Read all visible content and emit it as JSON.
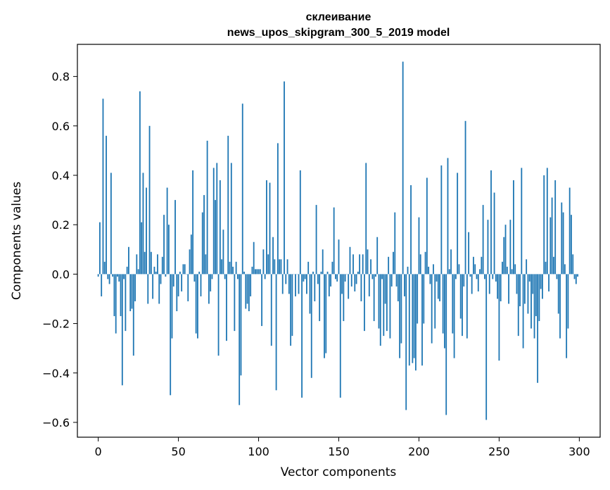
{
  "chart_data": {
    "type": "bar",
    "title": "склеивание",
    "subtitle": "news_upos_skipgram_300_5_2019 model",
    "xlabel": "Vector components",
    "ylabel": "Components values",
    "xlim": [
      -13,
      313
    ],
    "ylim": [
      -0.66,
      0.93
    ],
    "x_ticks": [
      0,
      50,
      100,
      150,
      200,
      250,
      300
    ],
    "y_ticks": [
      -0.6,
      -0.4,
      -0.2,
      0.0,
      0.2,
      0.4,
      0.6,
      0.8
    ],
    "y_tick_labels": [
      "−0.6",
      "−0.4",
      "−0.2",
      "0.0",
      "0.2",
      "0.4",
      "0.6",
      "0.8"
    ],
    "grid": false,
    "bar_color": "#1f77b4",
    "x": "0..299",
    "values": [
      -0.01,
      0.21,
      -0.09,
      0.71,
      0.05,
      0.56,
      -0.02,
      -0.04,
      0.41,
      -0.01,
      -0.17,
      -0.24,
      -0.01,
      -0.03,
      -0.17,
      -0.45,
      -0.02,
      -0.23,
      0.03,
      0.11,
      -0.15,
      -0.14,
      -0.33,
      -0.11,
      0.08,
      0.02,
      0.74,
      0.21,
      0.41,
      0.09,
      0.35,
      -0.12,
      0.6,
      0.09,
      -0.1,
      0.03,
      0.01,
      0.08,
      -0.12,
      -0.04,
      0.07,
      0.24,
      -0.01,
      0.35,
      0.2,
      -0.49,
      -0.26,
      -0.05,
      0.3,
      -0.15,
      -0.09,
      0.01,
      -0.07,
      0.04,
      0.04,
      0.0,
      -0.11,
      0.1,
      0.16,
      0.42,
      -0.03,
      -0.24,
      -0.26,
      0.01,
      -0.09,
      0.25,
      0.32,
      0.08,
      0.54,
      -0.12,
      -0.07,
      -0.02,
      0.43,
      0.3,
      0.45,
      -0.33,
      0.38,
      0.06,
      0.18,
      -0.02,
      -0.27,
      0.56,
      0.05,
      0.45,
      0.03,
      -0.23,
      0.05,
      -0.02,
      -0.53,
      -0.41,
      0.69,
      0.01,
      -0.14,
      -0.12,
      -0.15,
      -0.09,
      0.03,
      0.13,
      0.02,
      0.02,
      0.02,
      0.02,
      -0.21,
      0.1,
      -0.02,
      0.38,
      0.08,
      0.37,
      -0.29,
      0.15,
      0.06,
      -0.47,
      0.53,
      0.06,
      0.06,
      -0.08,
      0.78,
      -0.04,
      0.06,
      -0.08,
      -0.29,
      -0.25,
      0.0,
      -0.09,
      0.0,
      -0.08,
      0.42,
      -0.5,
      -0.03,
      -0.02,
      -0.08,
      0.05,
      -0.16,
      -0.42,
      0.01,
      -0.11,
      0.28,
      -0.04,
      -0.19,
      0.01,
      0.1,
      -0.34,
      -0.32,
      0.01,
      -0.09,
      -0.05,
      0.05,
      0.27,
      -0.02,
      -0.03,
      0.14,
      -0.5,
      -0.08,
      -0.19,
      -0.03,
      0.0,
      -0.1,
      0.11,
      -0.05,
      0.08,
      -0.07,
      -0.04,
      0.01,
      0.08,
      -0.11,
      0.08,
      -0.23,
      0.45,
      0.1,
      -0.09,
      0.06,
      -0.02,
      -0.19,
      -0.01,
      0.15,
      -0.22,
      -0.29,
      -0.02,
      -0.25,
      -0.12,
      -0.23,
      0.07,
      -0.26,
      -0.05,
      0.09,
      0.25,
      -0.05,
      -0.11,
      -0.34,
      -0.28,
      0.86,
      -0.09,
      -0.55,
      0.03,
      -0.37,
      0.36,
      -0.36,
      -0.34,
      -0.39,
      -0.2,
      0.23,
      0.08,
      -0.37,
      -0.2,
      0.09,
      0.39,
      0.03,
      -0.04,
      -0.28,
      0.04,
      -0.22,
      -0.03,
      -0.1,
      -0.11,
      0.44,
      -0.24,
      -0.3,
      -0.57,
      0.47,
      0.02,
      0.1,
      -0.24,
      -0.34,
      -0.02,
      0.41,
      0.04,
      -0.18,
      -0.25,
      -0.05,
      0.62,
      -0.26,
      0.17,
      -0.01,
      -0.08,
      0.07,
      0.04,
      -0.02,
      -0.07,
      0.02,
      0.07,
      0.28,
      -0.02,
      -0.59,
      0.22,
      -0.08,
      0.42,
      -0.02,
      0.33,
      -0.03,
      -0.1,
      -0.35,
      -0.11,
      0.05,
      0.15,
      0.2,
      0.03,
      -0.12,
      0.22,
      0.02,
      0.38,
      0.04,
      -0.08,
      -0.25,
      -0.13,
      0.43,
      -0.3,
      -0.12,
      0.06,
      -0.16,
      -0.03,
      -0.22,
      -0.08,
      -0.26,
      -0.17,
      -0.44,
      -0.19,
      -0.06,
      -0.1,
      0.4,
      0.05,
      0.43,
      -0.07,
      0.23,
      0.31,
      0.07,
      0.38,
      -0.02,
      -0.16,
      -0.26,
      0.29,
      0.25,
      0.04,
      -0.34,
      -0.22,
      0.35,
      0.24,
      0.08,
      -0.02,
      -0.04,
      -0.01
    ]
  }
}
